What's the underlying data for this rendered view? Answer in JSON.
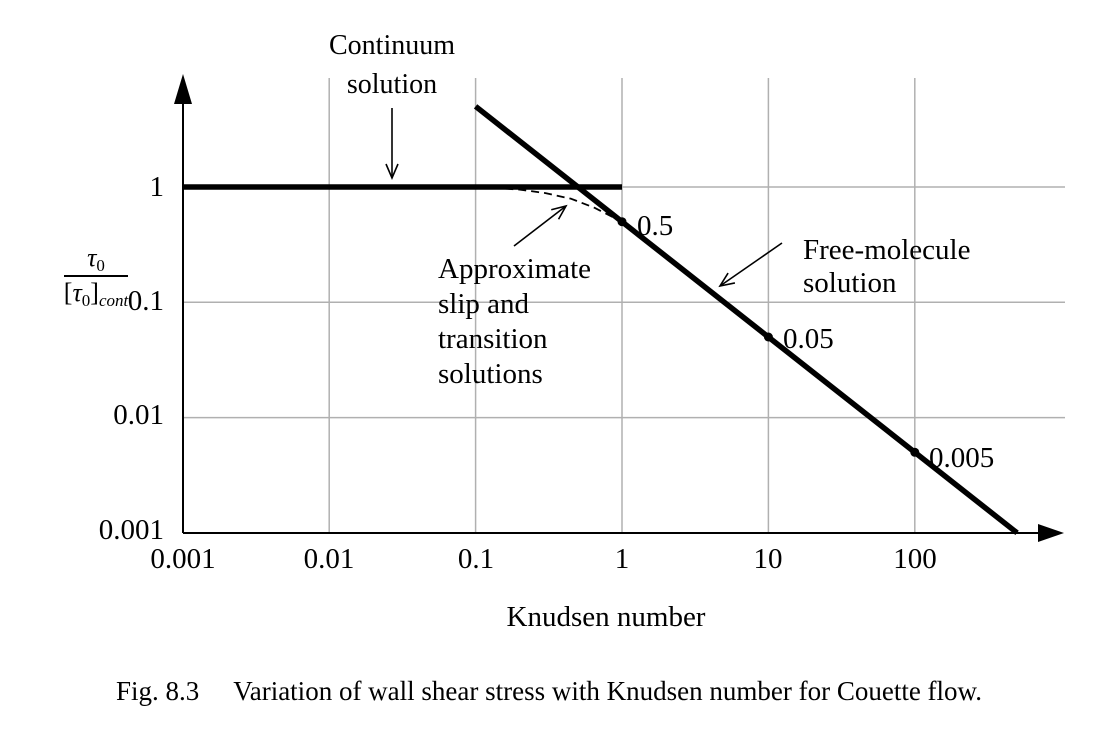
{
  "figure": {
    "caption_label": "Fig. 8.3",
    "caption_text": "Variation of wall shear stress with Knudsen number for Couette flow."
  },
  "colors": {
    "line": "#000000",
    "grid": "#b0b0b0",
    "background": "#ffffff"
  },
  "chart_data": {
    "type": "line",
    "title": "",
    "xlabel": "Knudsen number",
    "ylabel": "τ0/[τ0]cont",
    "ylabel_parts": {
      "num_base": "τ",
      "num_sub": "0",
      "den_open": "[",
      "den_base": "τ",
      "den_sub": "0",
      "den_close": "]",
      "den_sub2": "cont"
    },
    "x_scale": "log",
    "y_scale": "log",
    "xlim": [
      0.001,
      700
    ],
    "ylim": [
      0.001,
      8
    ],
    "grid_on": true,
    "legend_position": "none",
    "x_ticks": [
      "0.001",
      "0.01",
      "0.1",
      "1",
      "10",
      "100"
    ],
    "y_ticks": [
      "1",
      "0.1",
      "0.01",
      "0.001"
    ],
    "grid": {
      "x_lines": [
        0.01,
        0.1,
        1,
        10,
        100
      ],
      "y_lines": [
        1,
        0.1,
        0.01
      ]
    },
    "series": [
      {
        "name": "Continuum solution",
        "style": "thick-solid",
        "points": [
          [
            0.001,
            1
          ],
          [
            1,
            1
          ]
        ]
      },
      {
        "name": "Free-molecule solution",
        "style": "thick-solid",
        "points": [
          [
            0.1,
            5
          ],
          [
            500,
            0.001
          ]
        ]
      },
      {
        "name": "Approximate slip and transition solutions",
        "style": "thin-dashed",
        "points": [
          [
            0.13,
            0.985
          ],
          [
            0.2,
            0.95
          ],
          [
            0.3,
            0.885
          ],
          [
            0.45,
            0.79
          ],
          [
            0.65,
            0.66
          ],
          [
            1,
            0.5
          ]
        ]
      }
    ],
    "marked_points": [
      {
        "x": 1,
        "y": 0.5,
        "label": "0.5"
      },
      {
        "x": 10,
        "y": 0.05,
        "label": "0.05"
      },
      {
        "x": 100,
        "y": 0.005,
        "label": "0.005"
      }
    ],
    "annotations": [
      {
        "lines": [
          "Continuum",
          "solution"
        ]
      },
      {
        "lines": [
          "Approximate",
          "slip and",
          "transition",
          "solutions"
        ]
      },
      {
        "lines": [
          "Free-molecule",
          "solution"
        ]
      }
    ]
  }
}
